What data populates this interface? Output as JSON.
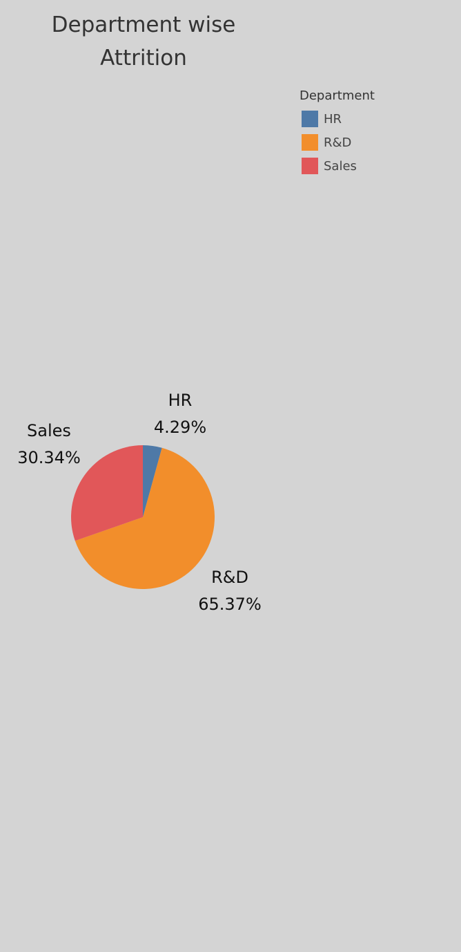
{
  "chart_data": {
    "type": "pie",
    "title": "Department wise Attrition",
    "title_lines": [
      "Department wise",
      "Attrition"
    ],
    "legend": {
      "title": "Department",
      "placement": "top-right",
      "items": [
        {
          "label": "HR",
          "color": "#4e79a7"
        },
        {
          "label": "R&D",
          "color": "#f28e2b"
        },
        {
          "label": "Sales",
          "color": "#e15759"
        }
      ]
    },
    "slices": [
      {
        "label": "HR",
        "percent_label": "4.29%",
        "value": 4.29,
        "color": "#4e79a7"
      },
      {
        "label": "R&D",
        "percent_label": "65.37%",
        "value": 65.37,
        "color": "#f28e2b"
      },
      {
        "label": "Sales",
        "percent_label": "30.34%",
        "value": 30.34,
        "color": "#e15759"
      }
    ]
  }
}
